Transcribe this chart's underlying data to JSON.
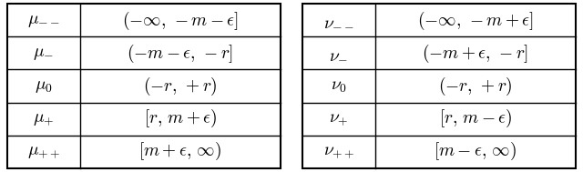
{
  "left_table": {
    "col1": [
      "$\\mu_{--}$",
      "$\\mu_{-}$",
      "$\\mu_0$",
      "$\\mu_{+}$",
      "$\\mu_{++}$"
    ],
    "col2": [
      "$(-\\infty,\\,-m-\\epsilon]$",
      "$(-m-\\epsilon,\\,-r]$",
      "$(-r,\\,+r)$",
      "$[r,\\,m+\\epsilon)$",
      "$[m+\\epsilon,\\,\\infty)$"
    ]
  },
  "right_table": {
    "col1": [
      "$\\nu_{--}$",
      "$\\nu_{-}$",
      "$\\nu_0$",
      "$\\nu_{+}$",
      "$\\nu_{++}$"
    ],
    "col2": [
      "$(-\\infty,\\,-m+\\epsilon]$",
      "$(-m+\\epsilon,\\,-r]$",
      "$(-r,\\,+r)$",
      "$[r,\\,m-\\epsilon)$",
      "$[m-\\epsilon,\\,\\infty)$"
    ]
  },
  "n_rows": 5,
  "bg_color": "#ffffff",
  "line_color": "#000000",
  "font_size": 14,
  "figwidth": 6.4,
  "figheight": 1.89,
  "dpi": 100
}
